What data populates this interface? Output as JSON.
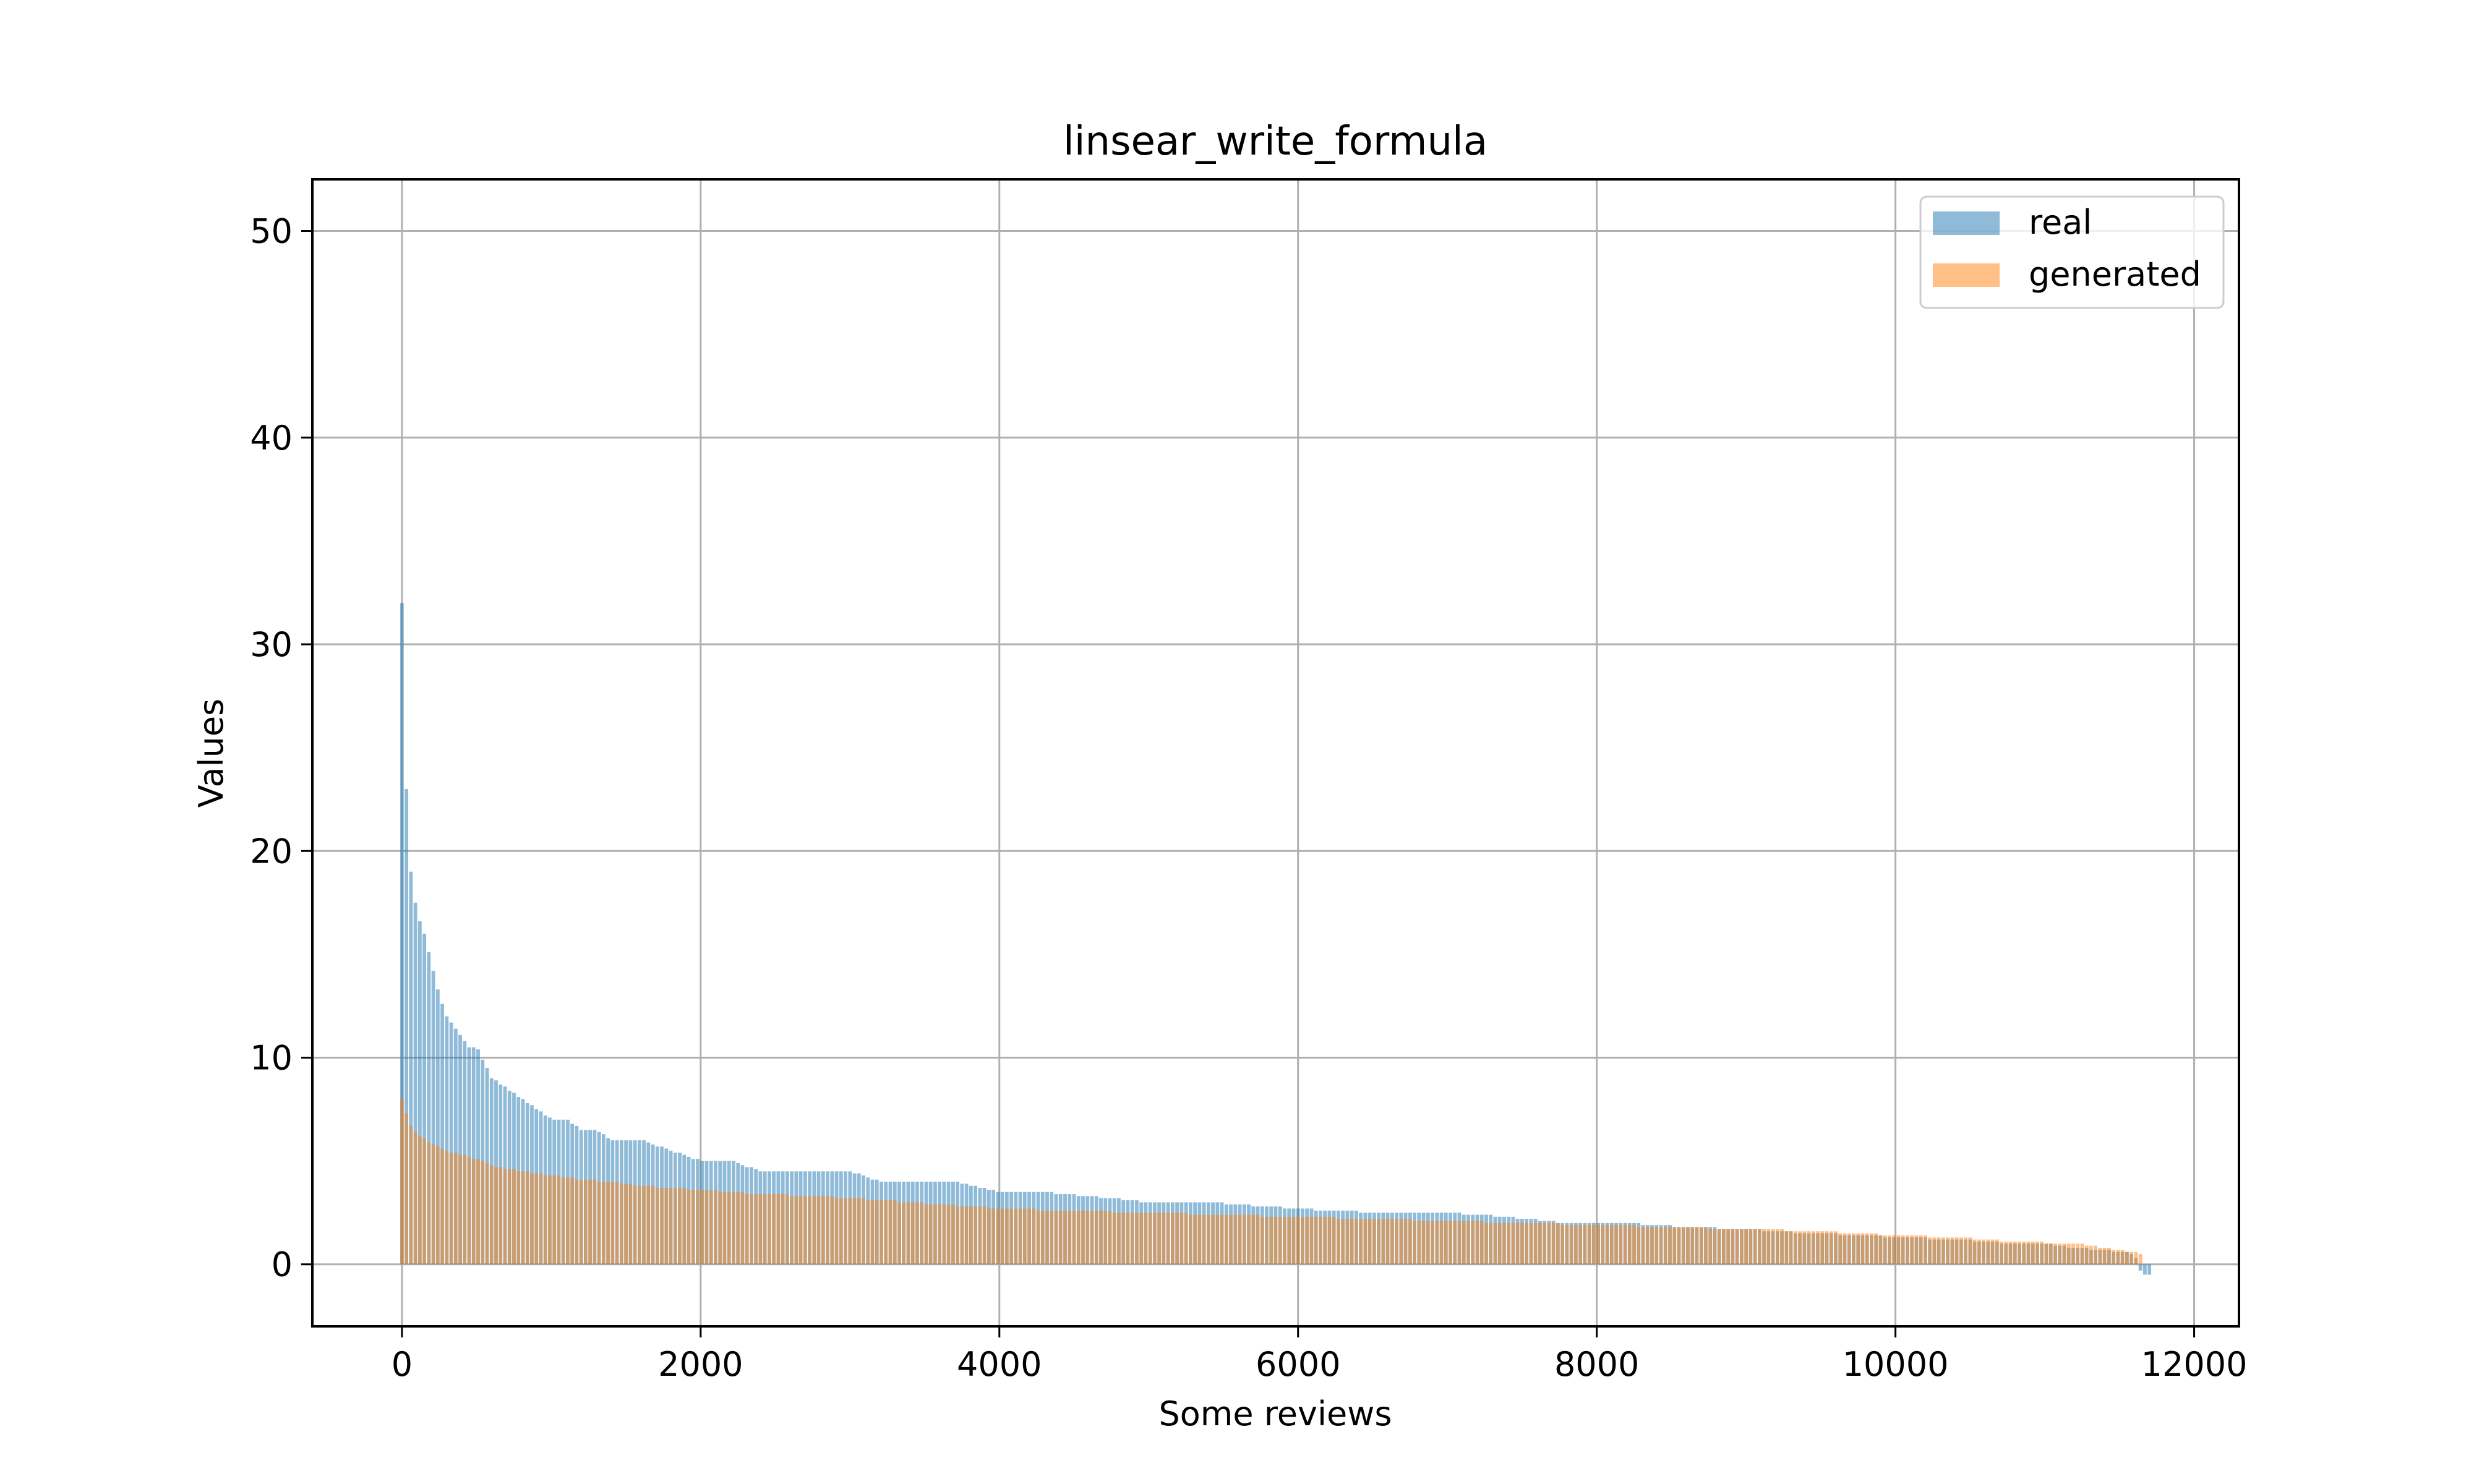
{
  "chart_data": {
    "type": "bar",
    "title": "linsear_write_formula",
    "xlabel": "Some reviews",
    "ylabel": "Values",
    "xlim": [
      -600,
      12300
    ],
    "ylim": [
      -3,
      52.5
    ],
    "x_ticks": [
      0,
      2000,
      4000,
      6000,
      8000,
      10000,
      12000
    ],
    "x_tick_labels": [
      "0",
      "2000",
      "4000",
      "6000",
      "8000",
      "10000",
      "12000"
    ],
    "y_ticks": [
      0,
      10,
      20,
      30,
      40,
      50
    ],
    "y_tick_labels": [
      "0",
      "10",
      "20",
      "30",
      "40",
      "50"
    ],
    "grid": true,
    "legend": "top-right",
    "bar_step": 30,
    "series": [
      {
        "name": "real",
        "color": "#1f77b4",
        "opacity": 0.5,
        "profile_x": [
          0,
          10,
          20,
          40,
          60,
          80,
          100,
          150,
          200,
          250,
          300,
          350,
          400,
          450,
          500,
          600,
          700,
          800,
          900,
          1000,
          1100,
          1200,
          1300,
          1400,
          1600,
          1800,
          2000,
          2200,
          2400,
          2500,
          2700,
          3000,
          3200,
          3400,
          3700,
          4000,
          4300,
          4600,
          5000,
          5400,
          5800,
          6200,
          6600,
          7000,
          7400,
          7800,
          8200,
          8600,
          9000,
          9400,
          9800,
          10000,
          10400,
          10800,
          11000,
          11200,
          11400,
          11600,
          11650,
          11700
        ],
        "profile_values": [
          32,
          27,
          25,
          21,
          19,
          18,
          17,
          16,
          14.5,
          13,
          12,
          11.5,
          11,
          10.5,
          10.5,
          9,
          8.5,
          8,
          7.5,
          7,
          7,
          6.5,
          6.5,
          6,
          6,
          5.5,
          5,
          5,
          4.5,
          4.5,
          4.5,
          4.5,
          4,
          4,
          4,
          3.5,
          3.5,
          3.3,
          3,
          3,
          2.8,
          2.6,
          2.5,
          2.5,
          2.3,
          2,
          2,
          1.8,
          1.7,
          1.5,
          1.4,
          1.3,
          1.2,
          1,
          1,
          0.8,
          0.7,
          0.5,
          -0.5,
          -0.5
        ]
      },
      {
        "name": "generated",
        "color": "#ff7f0e",
        "opacity": 0.5,
        "profile_x": [
          0,
          20,
          50,
          100,
          200,
          300,
          400,
          500,
          600,
          700,
          800,
          1000,
          1200,
          1400,
          1600,
          1800,
          2000,
          2400,
          2800,
          3200,
          3600,
          4000,
          4500,
          5000,
          5500,
          6000,
          6500,
          7000,
          7500,
          8000,
          8500,
          9000,
          9500,
          10000,
          10400,
          10800,
          11200,
          11500,
          11650
        ],
        "profile_values": [
          8,
          7.5,
          6.8,
          6.3,
          5.8,
          5.5,
          5.3,
          5.1,
          4.8,
          4.6,
          4.5,
          4.3,
          4.1,
          4,
          3.8,
          3.7,
          3.6,
          3.4,
          3.3,
          3.1,
          2.9,
          2.7,
          2.6,
          2.5,
          2.4,
          2.3,
          2.2,
          2.1,
          2,
          1.9,
          1.8,
          1.7,
          1.6,
          1.4,
          1.3,
          1.1,
          1,
          0.7,
          0.5
        ]
      }
    ]
  }
}
